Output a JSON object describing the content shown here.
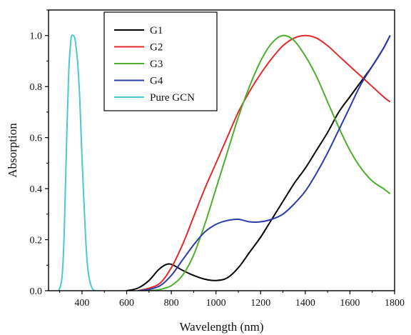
{
  "chart_data": {
    "type": "line",
    "xlabel": "Wavelength (nm)",
    "ylabel": "Absorption",
    "xlim": [
      250,
      1800
    ],
    "ylim": [
      0.0,
      1.1
    ],
    "xticks": [
      400,
      600,
      800,
      1000,
      1200,
      1400,
      1600,
      1800
    ],
    "yticks": [
      0.0,
      0.2,
      0.4,
      0.6,
      0.8,
      1.0
    ],
    "xtick_labels": [
      "400",
      "600",
      "800",
      "1000",
      "1200",
      "1400",
      "1600",
      "1800"
    ],
    "ytick_labels": [
      "0.0",
      "0.2",
      "0.4",
      "0.6",
      "0.8",
      "1.0"
    ],
    "grid": false,
    "legend_position": "top-left",
    "series": [
      {
        "name": "G1",
        "color": "#000000",
        "x": [
          600,
          650,
          700,
          740,
          770,
          790,
          810,
          850,
          900,
          950,
          1000,
          1050,
          1100,
          1150,
          1200,
          1250,
          1300,
          1350,
          1400,
          1450,
          1500,
          1550,
          1600,
          1650,
          1700,
          1750,
          1780
        ],
        "y": [
          0.0,
          0.01,
          0.04,
          0.08,
          0.1,
          0.105,
          0.1,
          0.08,
          0.06,
          0.045,
          0.04,
          0.05,
          0.09,
          0.15,
          0.21,
          0.28,
          0.35,
          0.42,
          0.48,
          0.55,
          0.62,
          0.7,
          0.76,
          0.82,
          0.88,
          0.95,
          1.0
        ]
      },
      {
        "name": "G2",
        "color": "#e32a2a",
        "x": [
          650,
          700,
          750,
          800,
          850,
          900,
          950,
          1000,
          1050,
          1100,
          1150,
          1200,
          1250,
          1300,
          1350,
          1400,
          1450,
          1500,
          1550,
          1600,
          1650,
          1700,
          1750,
          1780
        ],
        "y": [
          0.0,
          0.01,
          0.03,
          0.09,
          0.18,
          0.29,
          0.4,
          0.5,
          0.6,
          0.7,
          0.78,
          0.85,
          0.91,
          0.96,
          0.99,
          1.0,
          0.99,
          0.96,
          0.92,
          0.88,
          0.84,
          0.8,
          0.76,
          0.74
        ]
      },
      {
        "name": "G3",
        "color": "#4caf2e",
        "x": [
          700,
          750,
          800,
          850,
          900,
          950,
          1000,
          1050,
          1100,
          1150,
          1200,
          1250,
          1300,
          1350,
          1400,
          1450,
          1500,
          1550,
          1600,
          1650,
          1700,
          1750,
          1780
        ],
        "y": [
          0.0,
          0.005,
          0.02,
          0.06,
          0.14,
          0.26,
          0.4,
          0.54,
          0.68,
          0.8,
          0.9,
          0.97,
          1.0,
          0.98,
          0.92,
          0.84,
          0.74,
          0.64,
          0.55,
          0.48,
          0.43,
          0.4,
          0.38
        ]
      },
      {
        "name": "G4",
        "color": "#2a3aa8",
        "x": [
          650,
          700,
          750,
          800,
          850,
          900,
          950,
          1000,
          1050,
          1100,
          1150,
          1200,
          1250,
          1300,
          1350,
          1400,
          1450,
          1500,
          1550,
          1600,
          1650,
          1700,
          1750,
          1780
        ],
        "y": [
          0.0,
          0.005,
          0.02,
          0.06,
          0.12,
          0.18,
          0.23,
          0.26,
          0.275,
          0.28,
          0.27,
          0.27,
          0.28,
          0.3,
          0.34,
          0.39,
          0.46,
          0.54,
          0.63,
          0.72,
          0.81,
          0.88,
          0.95,
          1.0
        ]
      },
      {
        "name": "Pure GCN",
        "color": "#4cc7d4",
        "x": [
          295,
          310,
          320,
          330,
          340,
          350,
          355,
          360,
          365,
          370,
          380,
          390,
          400,
          410,
          420,
          430,
          445,
          460,
          475
        ],
        "y": [
          0.0,
          0.05,
          0.22,
          0.55,
          0.85,
          0.98,
          1.0,
          1.0,
          0.995,
          0.98,
          0.9,
          0.75,
          0.52,
          0.32,
          0.15,
          0.06,
          0.01,
          0.0,
          0.0
        ]
      }
    ]
  }
}
